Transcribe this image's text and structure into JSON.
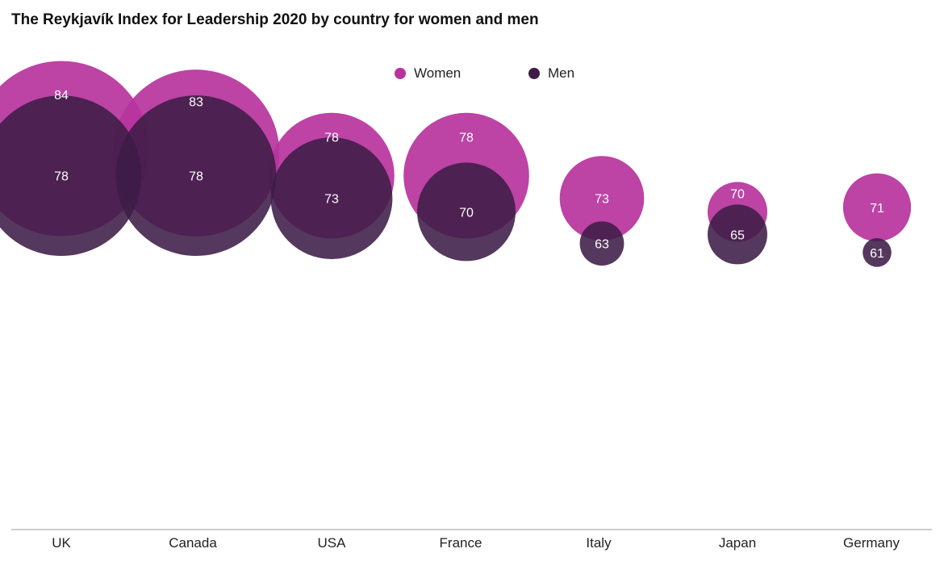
{
  "chart_data": {
    "type": "scatter",
    "title": "The Reykjavík Index for Leadership 2020 by country for women and men",
    "categories": [
      "UK",
      "Canada",
      "USA",
      "France",
      "Italy",
      "Japan",
      "Germany"
    ],
    "series": [
      {
        "name": "Women",
        "color": "#b7339d",
        "values": [
          84,
          83,
          78,
          78,
          73,
          70,
          71
        ]
      },
      {
        "name": "Men",
        "color": "#3e1c47",
        "values": [
          78,
          78,
          73,
          70,
          63,
          65,
          61
        ]
      }
    ],
    "legend_position": "top-center",
    "grid": false
  }
}
